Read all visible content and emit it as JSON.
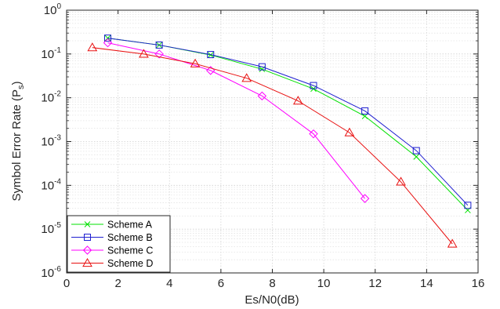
{
  "chart_data": {
    "type": "line",
    "title": "",
    "xlabel": "Es/N0(dB)",
    "ylabel": "Symbol Error Rate (P_s)",
    "ylabel_main": "Symbol Error Rate (P",
    "ylabel_sub": "s",
    "ylabel_close": ")",
    "xlim": [
      0,
      16
    ],
    "ylim": [
      1e-06,
      1
    ],
    "yscale": "log",
    "grid": true,
    "legend_position": "bottom-left",
    "xticks": [
      0,
      2,
      4,
      6,
      8,
      10,
      12,
      14,
      16
    ],
    "xtick_labels": [
      "0",
      "2",
      "4",
      "6",
      "8",
      "10",
      "12",
      "14",
      "16"
    ],
    "yticks": [
      {
        "value": 1,
        "base": "10",
        "exp": "0"
      },
      {
        "value": 0.1,
        "base": "10",
        "exp": "-1"
      },
      {
        "value": 0.01,
        "base": "10",
        "exp": "-2"
      },
      {
        "value": 0.001,
        "base": "10",
        "exp": "-3"
      },
      {
        "value": 0.0001,
        "base": "10",
        "exp": "-4"
      },
      {
        "value": 1e-05,
        "base": "10",
        "exp": "-5"
      },
      {
        "value": 1e-06,
        "base": "10",
        "exp": "-6"
      }
    ],
    "series": [
      {
        "name": "Scheme A",
        "color": "#00e000",
        "marker": "x",
        "x": [
          1.6,
          3.6,
          5.6,
          7.6,
          9.6,
          11.6,
          13.6,
          15.6
        ],
        "y": [
          0.23,
          0.16,
          0.095,
          0.045,
          0.016,
          0.0038,
          0.00045,
          2.7e-05
        ]
      },
      {
        "name": "Scheme B",
        "color": "#1f1fd0",
        "marker": "square",
        "x": [
          1.6,
          3.6,
          5.6,
          7.6,
          9.6,
          11.6,
          13.6,
          15.6
        ],
        "y": [
          0.23,
          0.16,
          0.097,
          0.051,
          0.019,
          0.005,
          0.00062,
          3.5e-05
        ]
      },
      {
        "name": "Scheme C",
        "color": "#ff00ff",
        "marker": "diamond",
        "x": [
          1.6,
          3.6,
          5.6,
          7.6,
          9.6,
          11.6
        ],
        "y": [
          0.18,
          0.1,
          0.042,
          0.011,
          0.0015,
          5e-05
        ]
      },
      {
        "name": "Scheme D",
        "color": "#e81010",
        "marker": "triangle",
        "x": [
          1,
          3,
          5,
          7,
          9,
          11,
          13,
          15
        ],
        "y": [
          0.14,
          0.1,
          0.06,
          0.028,
          0.0085,
          0.0016,
          0.00012,
          4.6e-06
        ]
      }
    ]
  }
}
